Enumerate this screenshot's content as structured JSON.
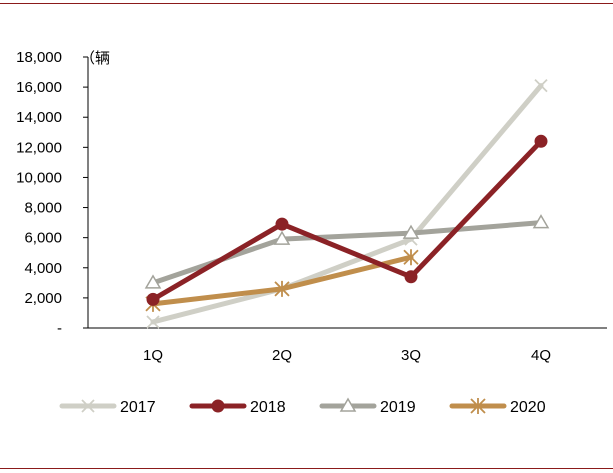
{
  "chart_data": {
    "type": "line",
    "title": "",
    "xlabel": "",
    "ylabel": "",
    "unit_label": "（辆",
    "categories": [
      "1Q",
      "2Q",
      "3Q",
      "4Q"
    ],
    "ylim": [
      0,
      18000
    ],
    "y_ticks": [
      0,
      2000,
      4000,
      6000,
      8000,
      10000,
      12000,
      14000,
      16000,
      18000
    ],
    "y_tick_labels": [
      "-",
      "2,000",
      "4,000",
      "6,000",
      "8,000",
      "10,000",
      "12,000",
      "14,000",
      "16,000",
      "18,000"
    ],
    "grid": false,
    "legend_position": "bottom",
    "series": [
      {
        "name": "2017",
        "values": [
          400,
          2600,
          5900,
          16100
        ],
        "color": "#cfcfc6",
        "marker": "x"
      },
      {
        "name": "2019",
        "values": [
          3000,
          5900,
          6300,
          7000
        ],
        "color": "#a3a39b",
        "marker": "triangle-open"
      },
      {
        "name": "2020",
        "values": [
          1600,
          2600,
          4700,
          null
        ],
        "color": "#c08e4c",
        "marker": "star"
      },
      {
        "name": "2018",
        "values": [
          1900,
          6900,
          3400,
          12400
        ],
        "color": "#8b2226",
        "marker": "circle"
      }
    ],
    "legend_order": [
      "2017",
      "2018",
      "2019",
      "2020"
    ]
  }
}
